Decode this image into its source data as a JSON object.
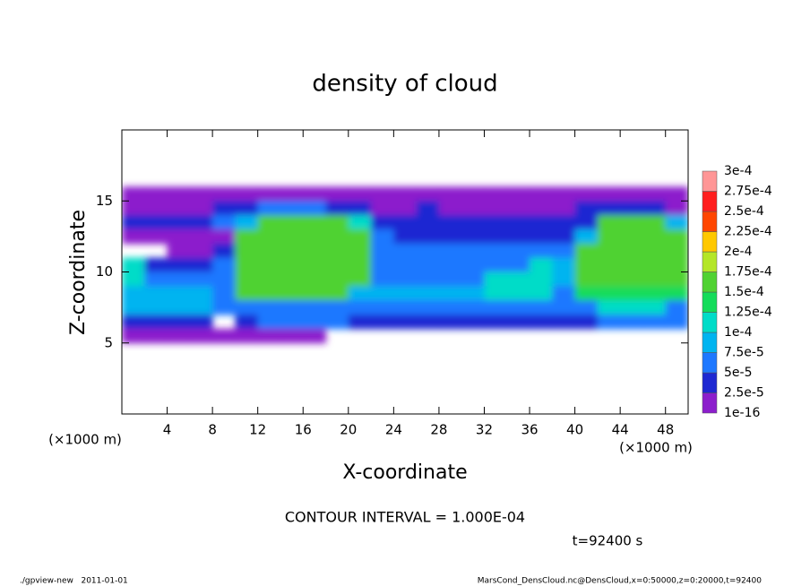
{
  "chart_data": {
    "type": "heatmap",
    "title": "density of cloud",
    "xlabel": "X-coordinate",
    "ylabel": "Z-coordinate",
    "xunit": "(×1000 m)",
    "contour_note": "CONTOUR INTERVAL = 1.000E-04",
    "time_label": "t=92400 s",
    "footer_left": "./gpview-new   2011-01-01",
    "footer_right": "MarsCond_DensCloud.nc@DensCloud,x=0:50000,z=0:20000,t=92400",
    "xlim": [
      0,
      50
    ],
    "ylim": [
      0,
      20
    ],
    "xticks": [
      4,
      8,
      12,
      16,
      20,
      24,
      28,
      32,
      36,
      40,
      44,
      48
    ],
    "yticks": [
      5,
      10,
      15
    ],
    "x": [
      1,
      3,
      5,
      7,
      9,
      11,
      13,
      15,
      17,
      19,
      21,
      23,
      25,
      27,
      29,
      31,
      33,
      35,
      37,
      39,
      41,
      43,
      45,
      47,
      49
    ],
    "z": [
      15.5,
      14.5,
      13.5,
      12.5,
      11.5,
      10.5,
      9.5,
      8.5,
      7.5,
      6.5,
      5.5
    ],
    "cell_width": 2,
    "cell_height": 1,
    "values": [
      [
        1e-05,
        1e-05,
        1e-05,
        1e-05,
        1e-05,
        1e-05,
        2e-05,
        2e-05,
        2e-05,
        1e-05,
        1e-05,
        1e-05,
        1e-05,
        1e-05,
        1e-05,
        1e-05,
        1e-05,
        1e-05,
        1e-05,
        1e-05,
        1e-05,
        1e-05,
        1e-05,
        1e-05,
        1e-05
      ],
      [
        2e-05,
        2e-05,
        2e-05,
        2e-05,
        3e-05,
        4e-05,
        5e-05,
        5e-05,
        5e-05,
        4e-05,
        3e-05,
        2e-05,
        2e-05,
        3e-05,
        2e-05,
        2e-05,
        2e-05,
        2e-05,
        2e-05,
        2e-05,
        3e-05,
        4e-05,
        4e-05,
        3e-05,
        2e-05
      ],
      [
        3e-05,
        3e-05,
        3e-05,
        3e-05,
        5e-05,
        8e-05,
        0.00016,
        0.00016,
        0.00016,
        0.00016,
        0.00012,
        4e-05,
        4e-05,
        4e-05,
        4e-05,
        3e-05,
        3e-05,
        3e-05,
        3e-05,
        3e-05,
        3e-05,
        0.00015,
        0.00015,
        0.00015,
        8e-05
      ],
      [
        2e-05,
        2e-05,
        2e-05,
        2e-05,
        2e-05,
        0.00015,
        0.00017,
        0.00017,
        0.00017,
        0.00017,
        0.00016,
        6e-05,
        4e-05,
        4e-05,
        4e-05,
        4e-05,
        4e-05,
        4e-05,
        4e-05,
        4e-05,
        8e-05,
        0.00016,
        0.00016,
        0.00016,
        0.00016
      ],
      [
        null,
        null,
        1e-05,
        2e-05,
        4e-05,
        0.00017,
        0.00017,
        0.00017,
        0.00017,
        0.00017,
        0.00017,
        5e-05,
        5e-05,
        5e-05,
        5e-05,
        5e-05,
        5e-05,
        5e-05,
        5e-05,
        6e-05,
        0.00016,
        0.00016,
        0.00016,
        0.00016,
        0.00016
      ],
      [
        0.00012,
        3e-05,
        3e-05,
        4e-05,
        5e-05,
        0.00017,
        0.00017,
        0.00017,
        0.00017,
        0.00017,
        0.00017,
        7e-05,
        6e-05,
        6e-05,
        6e-05,
        6e-05,
        6e-05,
        6e-05,
        0.0001,
        8e-05,
        0.00016,
        0.00016,
        0.00016,
        0.00016,
        0.00016
      ],
      [
        0.00012,
        5e-05,
        5e-05,
        5e-05,
        6e-05,
        0.00017,
        0.00017,
        0.00017,
        0.00017,
        0.00017,
        0.00015,
        7e-05,
        7e-05,
        7e-05,
        7e-05,
        7e-05,
        0.00011,
        0.00011,
        0.00011,
        8e-05,
        0.00016,
        0.00016,
        0.00016,
        0.00016,
        0.00016
      ],
      [
        8e-05,
        8e-05,
        8e-05,
        8e-05,
        6e-05,
        0.00015,
        0.00015,
        0.00015,
        0.00015,
        0.00015,
        9e-05,
        8e-05,
        8e-05,
        8e-05,
        8e-05,
        8e-05,
        0.00011,
        0.00011,
        0.00011,
        7e-05,
        0.00014,
        0.00014,
        0.00014,
        0.00014,
        0.00014
      ],
      [
        9e-05,
        9e-05,
        9e-05,
        9e-05,
        6e-05,
        7e-05,
        7e-05,
        7e-05,
        7e-05,
        7e-05,
        7e-05,
        6e-05,
        6e-05,
        6e-05,
        6e-05,
        6e-05,
        6e-05,
        6e-05,
        6e-05,
        6e-05,
        6e-05,
        0.00011,
        0.00011,
        0.00011,
        6e-05
      ],
      [
        4e-05,
        4e-05,
        4e-05,
        4e-05,
        null,
        4e-05,
        5e-05,
        5e-05,
        5e-05,
        5e-05,
        4e-05,
        4e-05,
        4e-05,
        4e-05,
        4e-05,
        4e-05,
        4e-05,
        4e-05,
        4e-05,
        4e-05,
        4e-05,
        5e-05,
        5e-05,
        5e-05,
        5e-05
      ],
      [
        1e-05,
        1e-05,
        1e-05,
        1e-05,
        1e-05,
        1e-05,
        1e-05,
        1e-05,
        1e-05,
        null,
        null,
        null,
        null,
        null,
        null,
        null,
        null,
        null,
        null,
        null,
        null,
        null,
        null,
        null,
        null
      ]
    ],
    "levels": [
      {
        "value": 1e-16,
        "label": "1e-16"
      },
      {
        "value": 2.5e-05,
        "label": "2.5e-5"
      },
      {
        "value": 5e-05,
        "label": "5e-5"
      },
      {
        "value": 7.5e-05,
        "label": "7.5e-5"
      },
      {
        "value": 0.0001,
        "label": "1e-4"
      },
      {
        "value": 0.000125,
        "label": "1.25e-4"
      },
      {
        "value": 0.00015,
        "label": "1.5e-4"
      },
      {
        "value": 0.000175,
        "label": "1.75e-4"
      },
      {
        "value": 0.0002,
        "label": "2e-4"
      },
      {
        "value": 0.000225,
        "label": "2.25e-4"
      },
      {
        "value": 0.00025,
        "label": "2.5e-4"
      },
      {
        "value": 0.000275,
        "label": "2.75e-4"
      },
      {
        "value": 0.0003,
        "label": "3e-4"
      }
    ],
    "colors": [
      "#8c1ecc",
      "#1e28d2",
      "#1e78ff",
      "#00b4f0",
      "#00dcc8",
      "#14dc5a",
      "#50d232",
      "#b4e628",
      "#ffc800",
      "#ff4600",
      "#ff1e1e",
      "#ff9696"
    ]
  }
}
